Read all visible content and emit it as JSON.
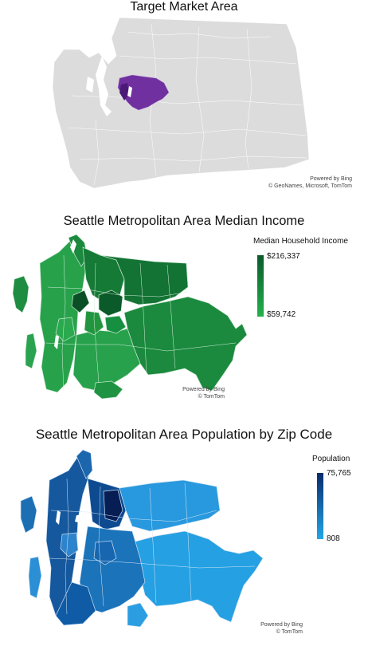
{
  "panels": {
    "target": {
      "title": "Target Market Area",
      "credit_line1": "Powered by Bing",
      "credit_line2": "© GeoNames, Microsoft, TomTom",
      "base_color": "#d9d9d9",
      "highlight_color": "#7030a0"
    },
    "income": {
      "title": "Seattle Metropolitan Area Median Income",
      "legend": {
        "title": "Median Household Income",
        "max": "$216,337",
        "min": "$59,742",
        "color_high": "#0b5a2a",
        "color_low": "#22b14c"
      },
      "credit_line1": "Powered by Bing",
      "credit_line2": "© TomTom"
    },
    "population": {
      "title": "Seattle Metropolitan Area Population by Zip Code",
      "legend": {
        "title": "Population",
        "max": "75,765",
        "min": "808",
        "color_high": "#0a2a6b",
        "color_low": "#21a6e8"
      },
      "credit_line1": "Powered by Bing",
      "credit_line2": "© TomTom"
    }
  }
}
